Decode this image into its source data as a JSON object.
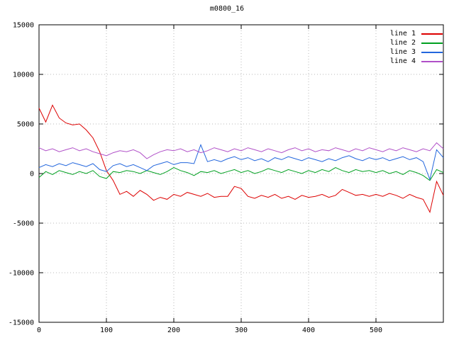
{
  "chart_data": {
    "type": "line",
    "title": "m0800_16",
    "xlabel": "",
    "ylabel": "",
    "xlim": [
      0,
      600
    ],
    "ylim": [
      -15000,
      15000
    ],
    "xticks": [
      0,
      100,
      200,
      300,
      400,
      500
    ],
    "yticks": [
      -15000,
      -10000,
      -5000,
      0,
      5000,
      10000,
      15000
    ],
    "grid": true,
    "legend_position": "top-right",
    "x": [
      0,
      10,
      20,
      30,
      40,
      50,
      60,
      70,
      80,
      90,
      100,
      110,
      120,
      130,
      140,
      150,
      160,
      170,
      180,
      190,
      200,
      210,
      220,
      230,
      240,
      250,
      260,
      270,
      280,
      290,
      300,
      310,
      320,
      330,
      340,
      350,
      360,
      370,
      380,
      390,
      400,
      410,
      420,
      430,
      440,
      450,
      460,
      470,
      480,
      490,
      500,
      510,
      520,
      530,
      540,
      550,
      560,
      570,
      580,
      590,
      600
    ],
    "series": [
      {
        "name": "line 1",
        "color": "#dd0000",
        "values": [
          6600,
          5200,
          6900,
          5600,
          5100,
          4900,
          5000,
          4400,
          3600,
          2200,
          300,
          -700,
          -2100,
          -1800,
          -2300,
          -1700,
          -2100,
          -2700,
          -2400,
          -2600,
          -2100,
          -2300,
          -1900,
          -2100,
          -2300,
          -2000,
          -2400,
          -2300,
          -2300,
          -1300,
          -1500,
          -2300,
          -2500,
          -2200,
          -2400,
          -2100,
          -2500,
          -2300,
          -2600,
          -2200,
          -2400,
          -2300,
          -2100,
          -2400,
          -2200,
          -1600,
          -1900,
          -2200,
          -2100,
          -2300,
          -2100,
          -2300,
          -2000,
          -2200,
          -2500,
          -2100,
          -2400,
          -2600,
          -3900,
          -800,
          -2200
        ]
      },
      {
        "name": "line 2",
        "color": "#00a020",
        "values": [
          -400,
          200,
          -100,
          300,
          100,
          -100,
          200,
          0,
          300,
          -300,
          -500,
          200,
          100,
          300,
          200,
          0,
          300,
          100,
          -100,
          200,
          600,
          300,
          100,
          -200,
          200,
          100,
          300,
          0,
          200,
          400,
          100,
          300,
          0,
          200,
          500,
          300,
          100,
          400,
          200,
          0,
          300,
          100,
          400,
          200,
          600,
          300,
          100,
          400,
          200,
          300,
          100,
          300,
          0,
          200,
          -100,
          300,
          100,
          -200,
          -700,
          400,
          100
        ]
      },
      {
        "name": "line 3",
        "color": "#2266dd",
        "values": [
          600,
          900,
          700,
          1000,
          800,
          1100,
          900,
          700,
          1000,
          400,
          200,
          800,
          1000,
          700,
          900,
          600,
          300,
          800,
          1000,
          1200,
          900,
          1100,
          1100,
          1000,
          2900,
          1200,
          1400,
          1200,
          1500,
          1700,
          1400,
          1600,
          1300,
          1500,
          1200,
          1600,
          1400,
          1700,
          1500,
          1300,
          1600,
          1400,
          1200,
          1500,
          1300,
          1600,
          1800,
          1500,
          1300,
          1600,
          1400,
          1600,
          1300,
          1500,
          1700,
          1400,
          1600,
          1200,
          -600,
          2400,
          1600
        ]
      },
      {
        "name": "line 4",
        "color": "#b050c8",
        "values": [
          2600,
          2300,
          2500,
          2200,
          2400,
          2600,
          2300,
          2500,
          2200,
          2000,
          1800,
          2100,
          2300,
          2200,
          2400,
          2100,
          1500,
          1900,
          2200,
          2400,
          2300,
          2500,
          2200,
          2400,
          2100,
          2300,
          2600,
          2400,
          2200,
          2500,
          2300,
          2600,
          2400,
          2200,
          2500,
          2300,
          2100,
          2400,
          2600,
          2300,
          2500,
          2200,
          2400,
          2300,
          2600,
          2400,
          2200,
          2500,
          2300,
          2600,
          2400,
          2200,
          2500,
          2300,
          2600,
          2400,
          2200,
          2500,
          2300,
          3100,
          2500
        ]
      }
    ]
  }
}
